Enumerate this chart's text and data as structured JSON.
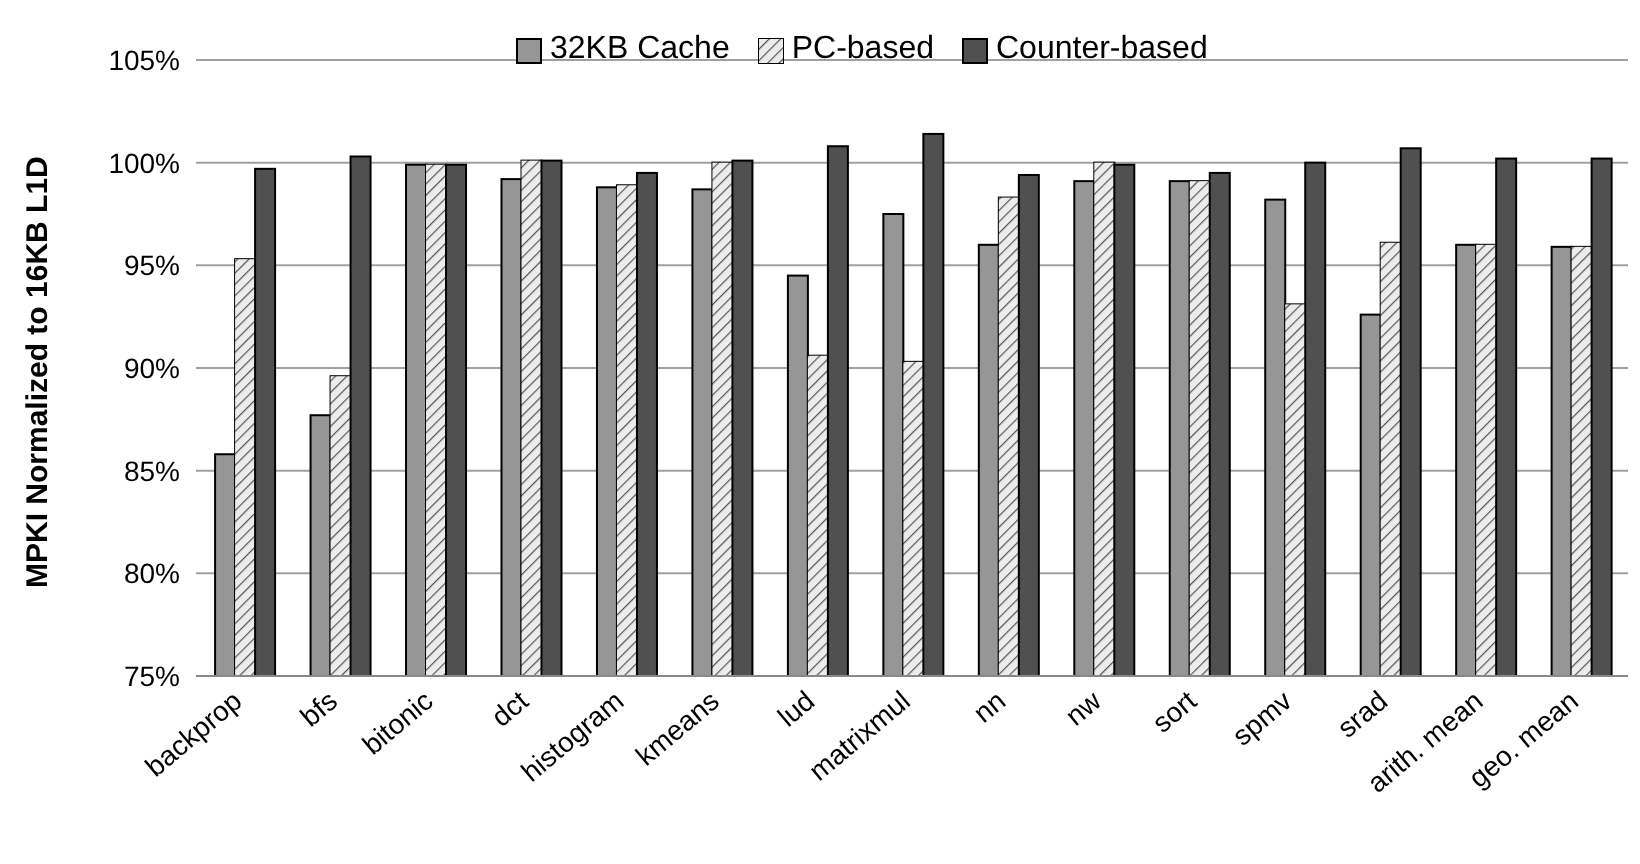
{
  "chart_data": {
    "type": "bar",
    "ylabel": "MPKI Normalized to 16KB L1D",
    "categories": [
      "backprop",
      "bfs",
      "bitonic",
      "dct",
      "histogram",
      "kmeans",
      "lud",
      "matrixmul",
      "nn",
      "nw",
      "sort",
      "spmv",
      "srad",
      "arith. mean",
      "geo. mean"
    ],
    "series": [
      {
        "name": "32KB Cache",
        "color": "#969696",
        "values": [
          85.8,
          87.7,
          99.9,
          99.2,
          98.8,
          98.7,
          94.5,
          97.5,
          96.0,
          99.1,
          99.1,
          98.2,
          92.6,
          96.0,
          95.9
        ]
      },
      {
        "name": "PC-based",
        "color": "#ececec",
        "values": [
          95.3,
          89.6,
          99.9,
          100.1,
          98.9,
          100.0,
          90.6,
          90.3,
          98.3,
          100.0,
          99.1,
          93.1,
          96.1,
          96.0,
          95.9
        ]
      },
      {
        "name": "Counter-based",
        "color": "#505050",
        "values": [
          99.7,
          100.3,
          99.9,
          100.1,
          99.5,
          100.1,
          100.8,
          101.4,
          99.4,
          99.9,
          99.5,
          100.0,
          100.7,
          100.2,
          100.2
        ]
      }
    ],
    "ylim": [
      75,
      105
    ],
    "yticks": [
      {
        "value": 75,
        "label": "75%"
      },
      {
        "value": 80,
        "label": "80%"
      },
      {
        "value": 85,
        "label": "85%"
      },
      {
        "value": 90,
        "label": "90%"
      },
      {
        "value": 95,
        "label": "95%"
      },
      {
        "value": 100,
        "label": "100%"
      },
      {
        "value": 105,
        "label": "105%"
      }
    ],
    "grid": "y",
    "legend": "top"
  }
}
